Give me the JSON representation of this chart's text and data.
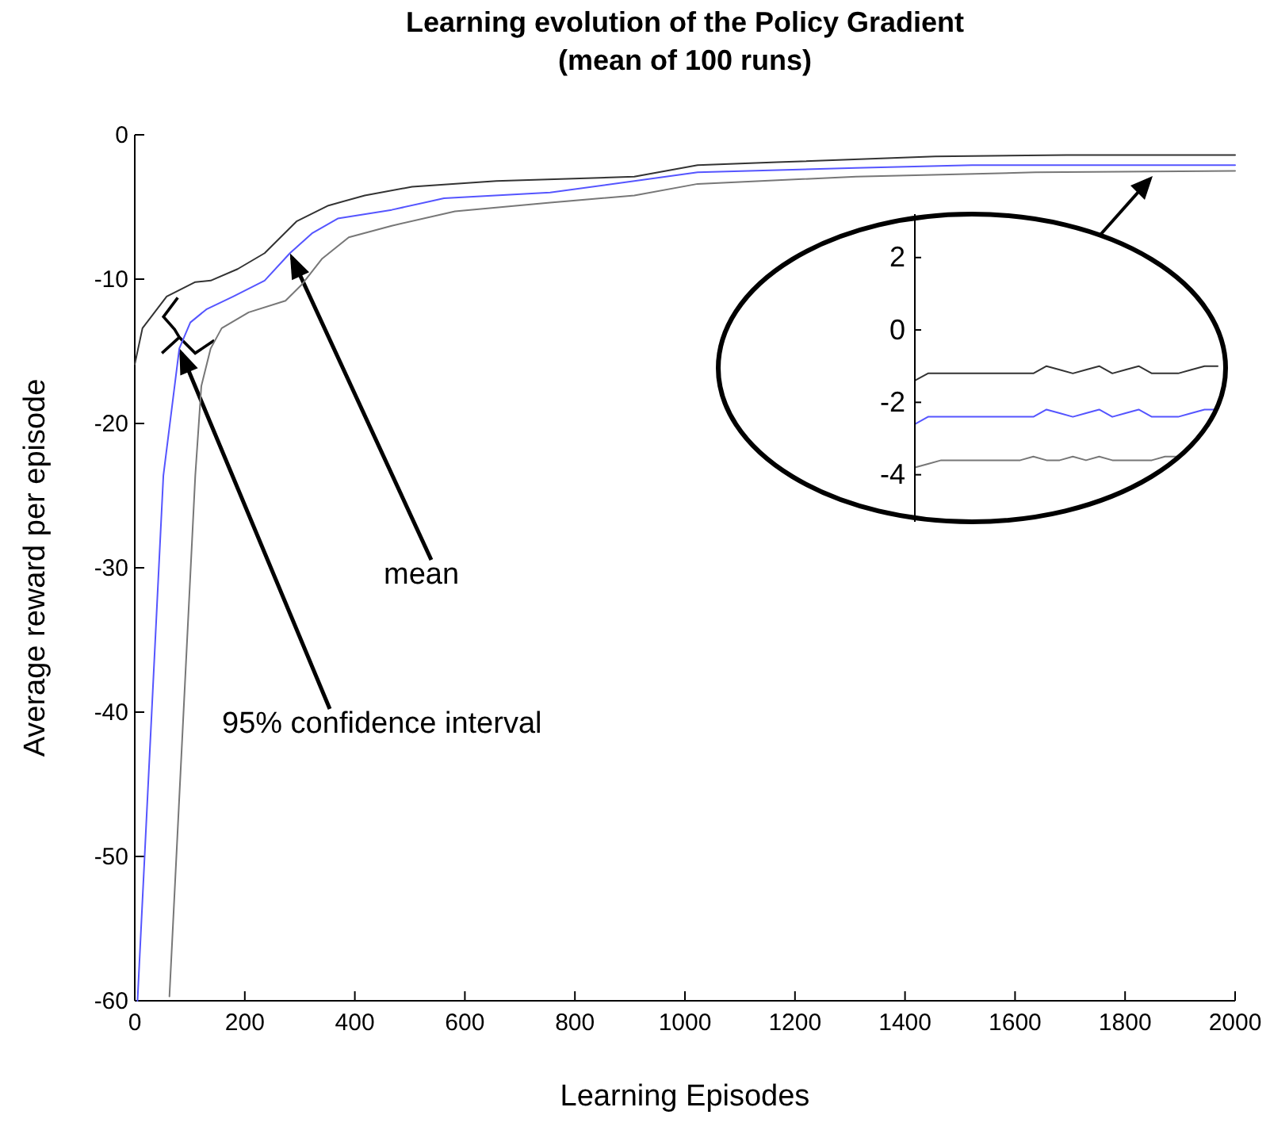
{
  "chart_data": [
    {
      "type": "line",
      "title": "Learning evolution of the Policy Gradient\n(mean of 100 runs)",
      "xlabel": "Learning Episodes",
      "ylabel": "Average reward per episode",
      "xlim": [
        0,
        2000
      ],
      "ylim": [
        -60,
        0
      ],
      "xticks": [
        0,
        200,
        400,
        600,
        800,
        1000,
        1200,
        1400,
        1600,
        1800,
        2000
      ],
      "yticks": [
        -60,
        -50,
        -40,
        -30,
        -20,
        -10,
        0
      ],
      "line_style": "solid",
      "marker": "none",
      "annotations": [
        {
          "text": "mean",
          "x": 282,
          "y": -8.2
        },
        {
          "text": "95% confidence interval",
          "x": 81,
          "y": -14.8
        }
      ],
      "series": [
        {
          "color": "#333333",
          "x": [
            0,
            14,
            58,
            110,
            138,
            187,
            236,
            294,
            352,
            418,
            504,
            657,
            908,
            1023,
            1167,
            1455,
            1694,
            2000
          ],
          "values": [
            -15.9,
            -13.4,
            -11.2,
            -10.2,
            -10.1,
            -9.3,
            -8.2,
            -6.0,
            -4.9,
            -4.2,
            -3.6,
            -3.2,
            -2.9,
            -2.1,
            -1.9,
            -1.5,
            -1.4,
            -1.4
          ]
        },
        {
          "color": "#5555ff",
          "x": [
            5,
            52,
            81,
            101,
            130,
            179,
            236,
            282,
            323,
            369,
            467,
            562,
            755,
            908,
            1023,
            1311,
            1522,
            2000
          ],
          "values": [
            -60,
            -23.6,
            -14.8,
            -13.0,
            -12.1,
            -11.2,
            -10.1,
            -8.2,
            -6.8,
            -5.8,
            -5.2,
            -4.4,
            -4.0,
            -3.2,
            -2.6,
            -2.3,
            -2.1,
            -2.1
          ]
        },
        {
          "color": "#777777",
          "x": [
            63,
            110,
            121,
            138,
            158,
            207,
            274,
            303,
            340,
            389,
            467,
            582,
            755,
            908,
            1023,
            1311,
            1637,
            2000
          ],
          "values": [
            -59.7,
            -23.6,
            -17.4,
            -14.8,
            -13.4,
            -12.3,
            -11.5,
            -10.4,
            -8.6,
            -7.1,
            -6.3,
            -5.3,
            -4.7,
            -4.2,
            -3.4,
            -2.9,
            -2.6,
            -2.5
          ]
        }
      ]
    },
    {
      "type": "line",
      "ylim": [
        -5.3,
        3.2
      ],
      "yticks": [
        -4,
        -2,
        0,
        2
      ],
      "tick_labels": "y",
      "line_style": "solid",
      "marker": "none",
      "categories": [
        null,
        null,
        null,
        null,
        null,
        null,
        null,
        null,
        null,
        null,
        null,
        null,
        null,
        null,
        null,
        null,
        null,
        null,
        null,
        null,
        null,
        null,
        null,
        null
      ],
      "series": [
        {
          "color": "#333333",
          "values": [
            -1.4,
            -1.2,
            -1.2,
            -1.2,
            -1.2,
            -1.2,
            -1.2,
            -1.2,
            -1.2,
            -1.2,
            -1.0,
            -1.1,
            -1.2,
            -1.1,
            -1.0,
            -1.2,
            -1.1,
            -1.0,
            -1.2,
            -1.2,
            -1.2,
            -1.1,
            -1.0,
            -1.0
          ]
        },
        {
          "color": "#5555ff",
          "values": [
            -2.6,
            -2.4,
            -2.4,
            -2.4,
            -2.4,
            -2.4,
            -2.4,
            -2.4,
            -2.4,
            -2.4,
            -2.2,
            -2.3,
            -2.4,
            -2.3,
            -2.2,
            -2.4,
            -2.3,
            -2.2,
            -2.4,
            -2.4,
            -2.4,
            -2.3,
            -2.2,
            -2.2
          ]
        },
        {
          "color": "#777777",
          "values": [
            -3.8,
            -3.7,
            -3.6,
            -3.6,
            -3.6,
            -3.6,
            -3.6,
            -3.6,
            -3.6,
            -3.5,
            -3.6,
            -3.6,
            -3.5,
            -3.6,
            -3.5,
            -3.6,
            -3.6,
            -3.6,
            -3.6,
            -3.5,
            -3.5,
            null,
            null,
            null
          ]
        }
      ]
    }
  ]
}
